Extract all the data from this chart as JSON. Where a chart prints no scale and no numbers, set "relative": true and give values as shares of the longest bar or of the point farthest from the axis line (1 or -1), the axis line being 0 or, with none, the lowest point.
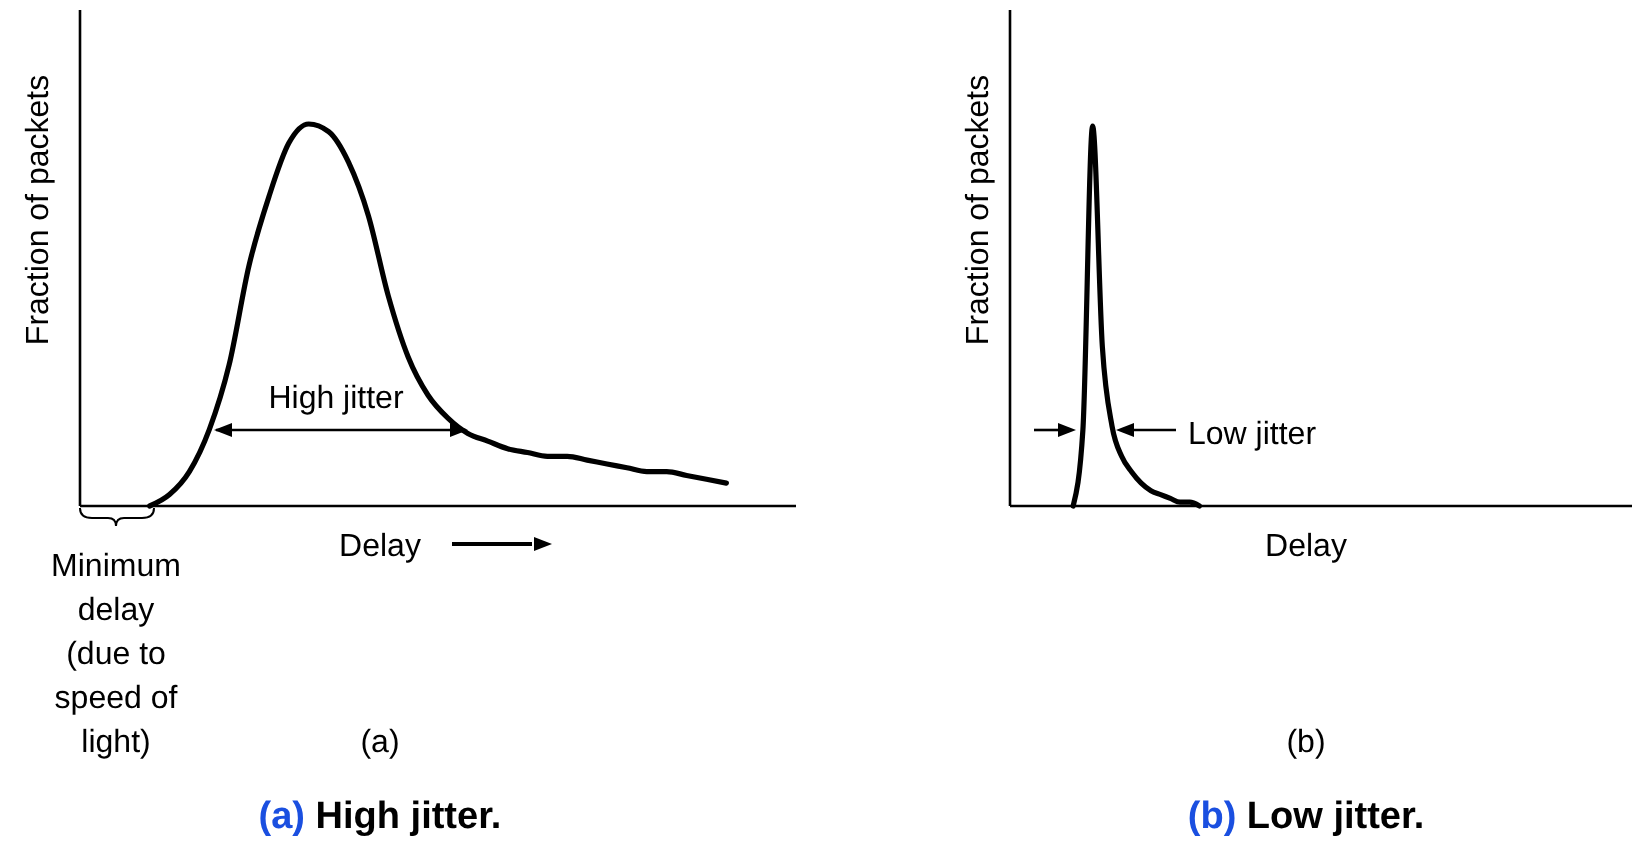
{
  "chart_data": [
    {
      "type": "line",
      "title": "(a) High jitter.",
      "xlabel": "Delay",
      "ylabel": "Fraction of packets",
      "relative": true,
      "categories": [
        null,
        null,
        null,
        null,
        null,
        null,
        null,
        null,
        null,
        null,
        null,
        null,
        null,
        null,
        null,
        null,
        null,
        null,
        null,
        null,
        null,
        null,
        null,
        null,
        null,
        null,
        null,
        null,
        null,
        null,
        null,
        null,
        null,
        null,
        null,
        null
      ],
      "series": [
        {
          "color": "#000000",
          "values": [
            null,
            null,
            null,
            0,
            0.03,
            0.09,
            0.2,
            0.37,
            0.63,
            0.81,
            0.95,
            1,
            0.98,
            0.9,
            0.76,
            0.55,
            0.39,
            0.29,
            0.23,
            0.19,
            0.17,
            0.15,
            0.14,
            0.13,
            0.13,
            0.12,
            0.11,
            0.1,
            0.09,
            0.09,
            0.08,
            0.07,
            0.06,
            null,
            null,
            null
          ]
        }
      ],
      "annotations": [
        "High jitter",
        "Minimum\ndelay\n(due to\nspeed of\nlight)",
        "(a)"
      ]
    },
    {
      "type": "line",
      "title": "(b) Low jitter.",
      "xlabel": "Delay",
      "ylabel": "Fraction of packets",
      "relative": true,
      "categories": [
        null,
        null,
        null,
        null,
        null,
        null,
        null,
        null,
        null,
        null,
        null,
        null,
        null,
        null,
        null,
        null,
        null,
        null,
        null,
        null,
        null,
        null,
        null,
        null,
        null,
        null,
        null,
        null,
        null,
        null,
        null,
        null,
        null,
        null,
        null,
        null,
        null,
        null,
        null,
        null,
        null,
        null,
        null,
        null,
        null,
        null,
        null,
        null,
        null,
        null,
        null,
        null,
        null,
        null,
        null,
        null,
        null,
        null,
        null,
        null,
        null,
        null,
        null,
        null
      ],
      "series": [
        {
          "color": "#000000",
          "values": [
            null,
            null,
            null,
            null,
            null,
            null,
            0,
            0.2,
            1,
            0.42,
            0.21,
            0.13,
            0.09,
            0.06,
            0.04,
            0.03,
            0.02,
            0.01,
            0.01,
            0,
            null,
            null,
            null,
            null,
            null,
            null,
            null,
            null,
            null,
            null,
            null,
            null,
            null,
            null,
            null,
            null,
            null,
            null,
            null,
            null,
            null,
            null,
            null,
            null,
            null,
            null,
            null,
            null,
            null,
            null,
            null,
            null,
            null,
            null,
            null,
            null,
            null,
            null,
            null,
            null,
            null,
            null,
            null,
            null
          ]
        }
      ],
      "annotations": [
        "Low jitter",
        "(b)"
      ]
    }
  ]
}
